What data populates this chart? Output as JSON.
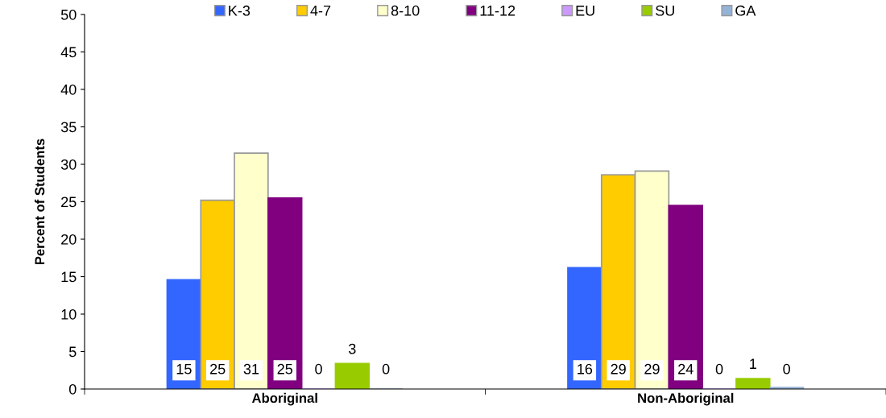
{
  "chart_data": {
    "type": "bar",
    "ylabel": "Percent of Students",
    "categories": [
      "Aboriginal",
      "Non-Aboriginal"
    ],
    "series": [
      {
        "name": "K-3",
        "color": "#3366ff",
        "values": [
          14.6,
          16.2
        ],
        "value_labels": [
          "15",
          "16"
        ]
      },
      {
        "name": "4-7",
        "color": "#ffcc00",
        "values": [
          25.2,
          28.6
        ],
        "value_labels": [
          "25",
          "29"
        ]
      },
      {
        "name": "8-10",
        "color": "#ffffcc",
        "values": [
          31.5,
          29.1
        ],
        "value_labels": [
          "31",
          "29"
        ]
      },
      {
        "name": "11-12",
        "color": "#800080",
        "values": [
          25.5,
          24.5
        ],
        "value_labels": [
          "25",
          "24"
        ]
      },
      {
        "name": "EU",
        "color": "#cc99ff",
        "values": [
          0,
          0
        ],
        "value_labels": [
          "0",
          "0"
        ]
      },
      {
        "name": "SU",
        "color": "#99cc00",
        "values": [
          3.4,
          1.4
        ],
        "value_labels": [
          "3",
          "1"
        ]
      },
      {
        "name": "GA",
        "color": "#95b3d7",
        "values": [
          0,
          0.2
        ],
        "value_labels": [
          "0",
          "0"
        ]
      }
    ],
    "ylim": [
      0,
      50
    ],
    "yticks": [
      0,
      5,
      10,
      15,
      20,
      25,
      30,
      35,
      40,
      45,
      50
    ],
    "grid": false,
    "legend": "top"
  }
}
